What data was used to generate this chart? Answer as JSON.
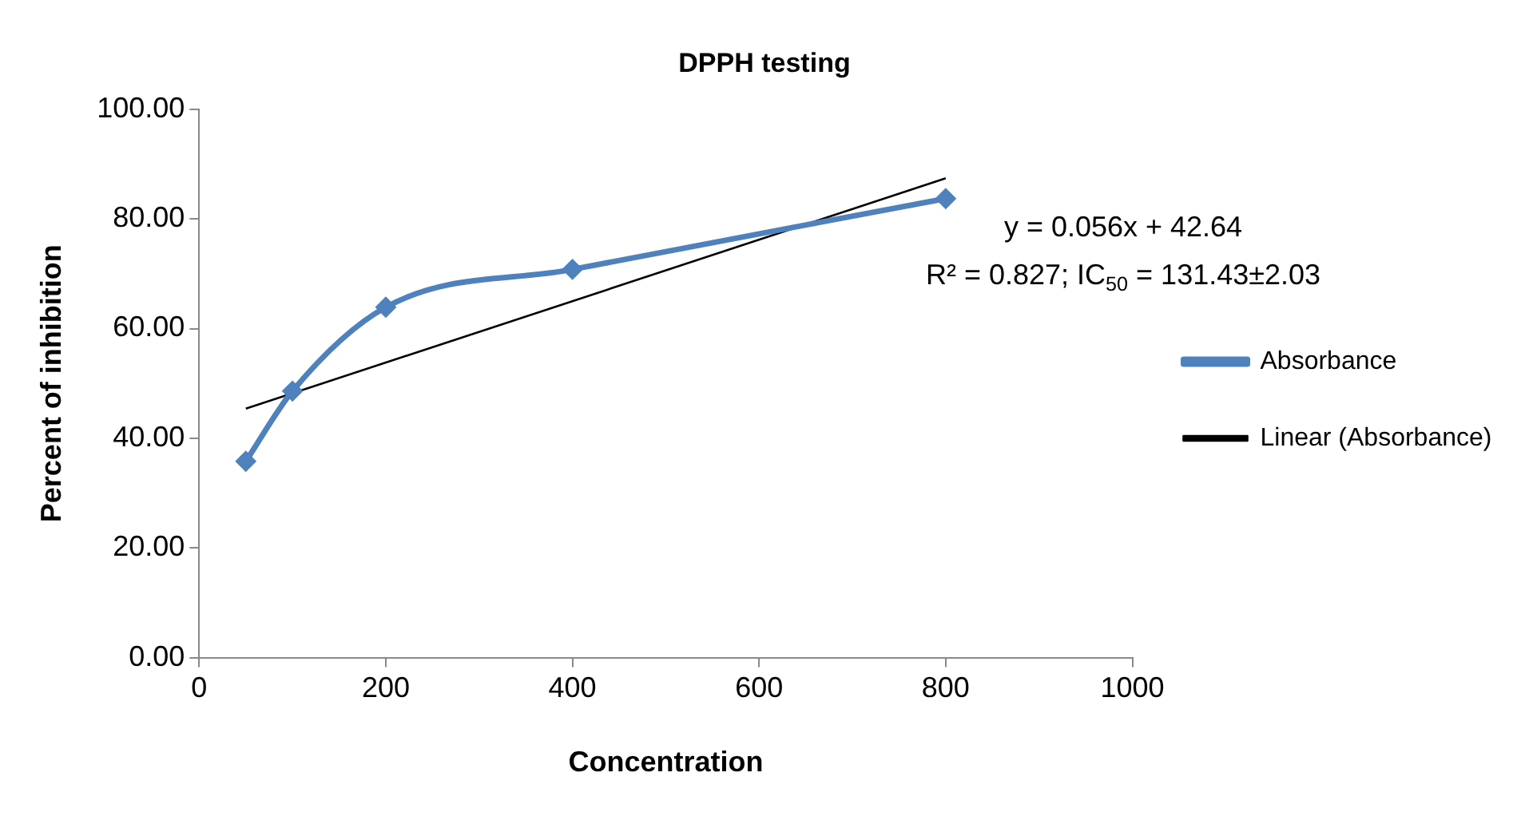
{
  "chart_data": {
    "type": "line",
    "title": "DPPH testing",
    "xlabel": "Concentration",
    "ylabel": "Percent of inhibition",
    "series": [
      {
        "name": "Absorbance",
        "type": "line",
        "color": "#4f81bd",
        "x": [
          50,
          100,
          200,
          400,
          800
        ],
        "values": [
          35.8,
          48.6,
          63.9,
          70.8,
          83.7
        ],
        "marker": "diamond"
      },
      {
        "name": "Linear (Absorbance)",
        "type": "line",
        "color": "#000000",
        "x": [
          50,
          800
        ],
        "values": [
          45.4,
          87.4
        ],
        "marker": "none"
      }
    ],
    "xlim": [
      0,
      1000
    ],
    "xticks": [
      0,
      200,
      400,
      600,
      800,
      1000
    ],
    "ylim": [
      0,
      100
    ],
    "yticks": [
      {
        "value": 0,
        "label": "0.00"
      },
      {
        "value": 20,
        "label": "20.00"
      },
      {
        "value": 40,
        "label": "40.00"
      },
      {
        "value": 60,
        "label": "60.00"
      },
      {
        "value": 80,
        "label": "80.00"
      },
      {
        "value": 100,
        "label": "100.00"
      }
    ],
    "grid": false,
    "legend": "right",
    "annotations": [
      "y = 0.056x + 42.64",
      "R² = 0.827; IC$_{50}$ = 131.43±2.03"
    ]
  }
}
